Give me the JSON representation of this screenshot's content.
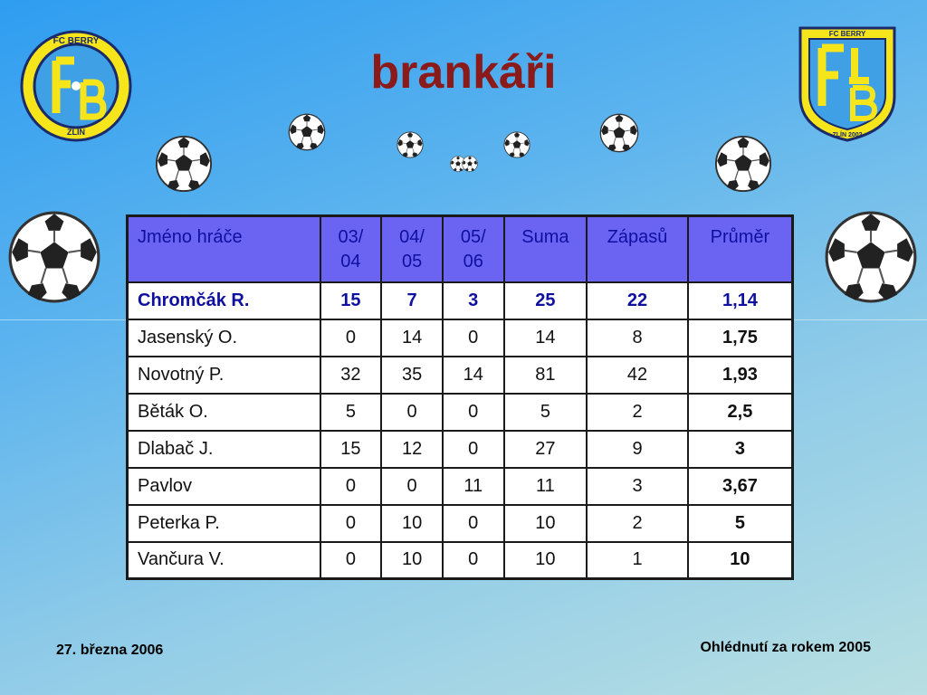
{
  "slide": {
    "title": "brankáři",
    "footer_left": "27. března 2006",
    "footer_right": "Ohlédnutí za rokem 2005"
  },
  "logos": {
    "left_text_top": "FC BERRY",
    "left_text_bottom": "ZLÍN",
    "right_text_top": "FC BERRY",
    "right_text_bottom": "ZLÍN 2002"
  },
  "table": {
    "headers": [
      "Jméno hráče",
      "03/04",
      "04/05",
      "05/06",
      "Suma",
      "Zápasů",
      "Průměr"
    ],
    "header_lines": {
      "c1a": "03/",
      "c1b": "04",
      "c2a": "04/",
      "c2b": "05",
      "c3a": "05/",
      "c3b": "06"
    },
    "rows": [
      [
        "Chromčák R.",
        "15",
        "7",
        "3",
        "25",
        "22",
        "1,14"
      ],
      [
        "Jasenský O.",
        "0",
        "14",
        "0",
        "14",
        "8",
        "1,75"
      ],
      [
        "Novotný P.",
        "32",
        "35",
        "14",
        "81",
        "42",
        "1,93"
      ],
      [
        "Běták O.",
        "5",
        "0",
        "0",
        "5",
        "2",
        "2,5"
      ],
      [
        "Dlabač J.",
        "15",
        "12",
        "0",
        "27",
        "9",
        "3"
      ],
      [
        "Pavlov",
        "0",
        "0",
        "11",
        "11",
        "3",
        "3,67"
      ],
      [
        "Peterka P.",
        "0",
        "10",
        "0",
        "10",
        "2",
        "5"
      ],
      [
        "Vančura V.",
        "0",
        "10",
        "0",
        "10",
        "1",
        "10"
      ]
    ]
  },
  "colors": {
    "title": "#8b1a1a",
    "header_bg": "#6b63f2",
    "header_text": "#1010a0",
    "logo_yellow": "#f5e51a",
    "logo_blue": "#2a5bb8"
  }
}
